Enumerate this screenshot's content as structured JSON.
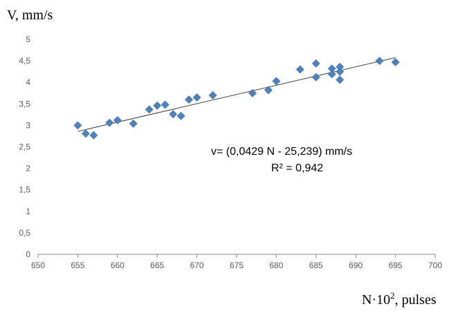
{
  "chart_data": {
    "type": "scatter",
    "ylabel": "V, mm/s",
    "xlabel": {
      "base": "N·10",
      "superscript": "2",
      "suffix": ", pulses"
    },
    "xlim": [
      650,
      700
    ],
    "ylim": [
      0,
      5
    ],
    "x_ticks": [
      "650",
      "655",
      "660",
      "665",
      "670",
      "675",
      "680",
      "685",
      "690",
      "695",
      "700"
    ],
    "y_ticks": [
      "0",
      "0,5",
      "1",
      "1,5",
      "2",
      "2,5",
      "3",
      "3,5",
      "4",
      "4,5",
      "5"
    ],
    "grid": false,
    "legend": "none",
    "marker_color": "#4f81bd",
    "trendline_color": "#404040",
    "series": [
      {
        "points": [
          [
            655,
            3.0
          ],
          [
            656,
            2.81
          ],
          [
            657,
            2.77
          ],
          [
            659,
            3.06
          ],
          [
            660,
            3.12
          ],
          [
            662,
            3.04
          ],
          [
            664,
            3.37
          ],
          [
            665,
            3.46
          ],
          [
            666,
            3.48
          ],
          [
            667,
            3.26
          ],
          [
            668,
            3.22
          ],
          [
            669,
            3.6
          ],
          [
            670,
            3.65
          ],
          [
            672,
            3.7
          ],
          [
            677,
            3.75
          ],
          [
            679,
            3.82
          ],
          [
            680,
            4.03
          ],
          [
            683,
            4.3
          ],
          [
            685,
            4.44
          ],
          [
            685,
            4.12
          ],
          [
            687,
            4.32
          ],
          [
            687,
            4.19
          ],
          [
            688,
            4.36
          ],
          [
            688,
            4.25
          ],
          [
            688,
            4.06
          ],
          [
            693,
            4.5
          ],
          [
            695,
            4.47
          ]
        ]
      }
    ],
    "trendline": {
      "slope": 0.0429,
      "intercept": -25.239,
      "x_range": [
        655,
        695
      ]
    },
    "annotation": {
      "equation": "v= (0,0429 N - 25,239) mm/s",
      "r_squared": "R² = 0,942"
    }
  }
}
